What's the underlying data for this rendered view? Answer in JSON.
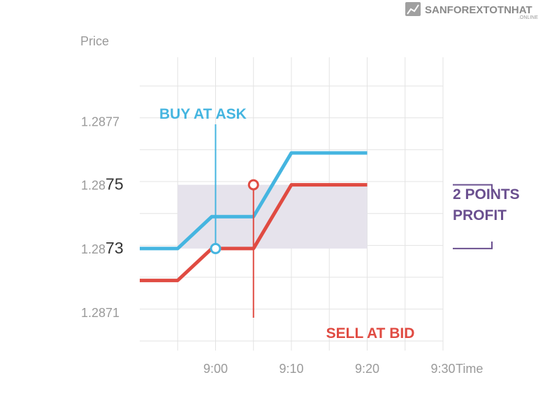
{
  "watermark": {
    "name": "SANFOREXTOTNHAT",
    "sub": ".ONLINE"
  },
  "chart_data": {
    "type": "line",
    "ylabel": "Price",
    "xlabel": "Time",
    "x_ticks": [
      "9:00",
      "9:10",
      "9:20",
      "9:30"
    ],
    "y_ticks": [
      {
        "prefix": "1.2877",
        "suffix": ""
      },
      {
        "prefix": "1.28",
        "suffix": "75"
      },
      {
        "prefix": "1.28",
        "suffix": "73"
      },
      {
        "prefix": "1.2871",
        "suffix": ""
      }
    ],
    "y_tick_values": [
      1.2877,
      1.2875,
      1.2873,
      1.2871
    ],
    "ylim": [
      1.28698,
      1.2879
    ],
    "xlim_minutes": [
      -10,
      30
    ],
    "grid": true,
    "series": [
      {
        "name": "",
        "color": "#45b5e0",
        "points": [
          [
            -10,
            1.2873
          ],
          [
            -5,
            1.2873
          ],
          [
            -0.5,
            1.2874
          ],
          [
            5,
            1.2874
          ],
          [
            10,
            1.2876
          ],
          [
            20,
            1.2876
          ]
        ]
      },
      {
        "name": "",
        "color": "#e04b42",
        "points": [
          [
            -10,
            1.2872
          ],
          [
            -5,
            1.2872
          ],
          [
            -0.5,
            1.2873
          ],
          [
            5,
            1.2873
          ],
          [
            10,
            1.2875
          ],
          [
            20,
            1.2875
          ]
        ]
      }
    ],
    "profit_band": {
      "x": [
        -5,
        20
      ],
      "y": [
        1.2873,
        1.2875
      ],
      "color": "#e6e3ec"
    },
    "annotations": [
      {
        "text": "BUY AT ASK",
        "color": "#45b5e0",
        "marker": [
          0,
          1.2873
        ]
      },
      {
        "text": "SELL AT BID",
        "color": "#e04b42",
        "marker": [
          5,
          1.2875
        ]
      },
      {
        "text_lines": [
          "2 POINTS",
          "PROFIT"
        ],
        "color": "#6a4f8f",
        "span": [
          1.2873,
          1.2875
        ]
      }
    ]
  }
}
